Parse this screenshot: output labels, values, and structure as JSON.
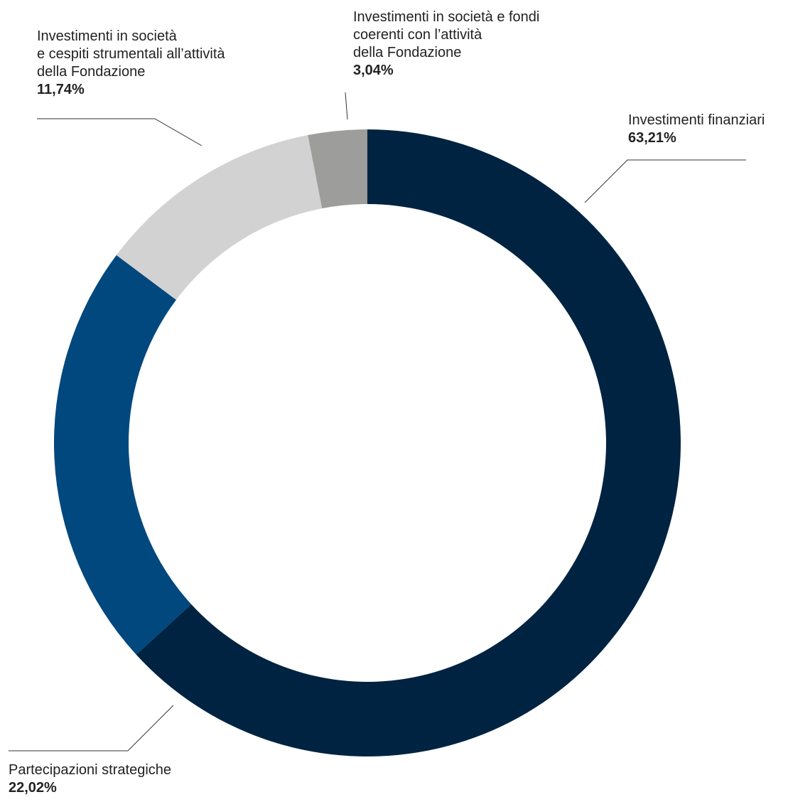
{
  "chart_data": {
    "type": "pie",
    "variant": "donut",
    "title": "",
    "start": "12 o'clock, clockwise",
    "unit": "%",
    "slices": [
      {
        "label": "Investimenti finanziari",
        "value": 63.21,
        "value_label": "63,21%",
        "color": "#002341"
      },
      {
        "label": "Partecipazioni strategiche",
        "value": 22.02,
        "value_label": "22,02%",
        "color": "#00487d"
      },
      {
        "label": "Investimenti in società e cespiti strumentali all’attività della Fondazione",
        "value": 11.74,
        "value_label": "11,74%",
        "color": "#d2d2d2"
      },
      {
        "label": "Investimenti in società e fondi coerenti con l’attività della Fondazione",
        "value": 3.04,
        "value_label": "3,04%",
        "color": "#9d9d9c"
      }
    ]
  },
  "labels": {
    "fin": {
      "lines": [
        "Investimenti finanziari"
      ],
      "pct": "63,21%"
    },
    "strat": {
      "lines": [
        "Partecipazioni strategiche"
      ],
      "pct": "22,02%"
    },
    "str": {
      "lines": [
        "Investimenti in società",
        "e cespiti strumentali all’attività",
        "della Fondazione"
      ],
      "pct": "11,74%"
    },
    "coer": {
      "lines": [
        "Investimenti in società e fondi",
        "coerenti con l’attività",
        "della Fondazione"
      ],
      "pct": "3,04%"
    }
  }
}
